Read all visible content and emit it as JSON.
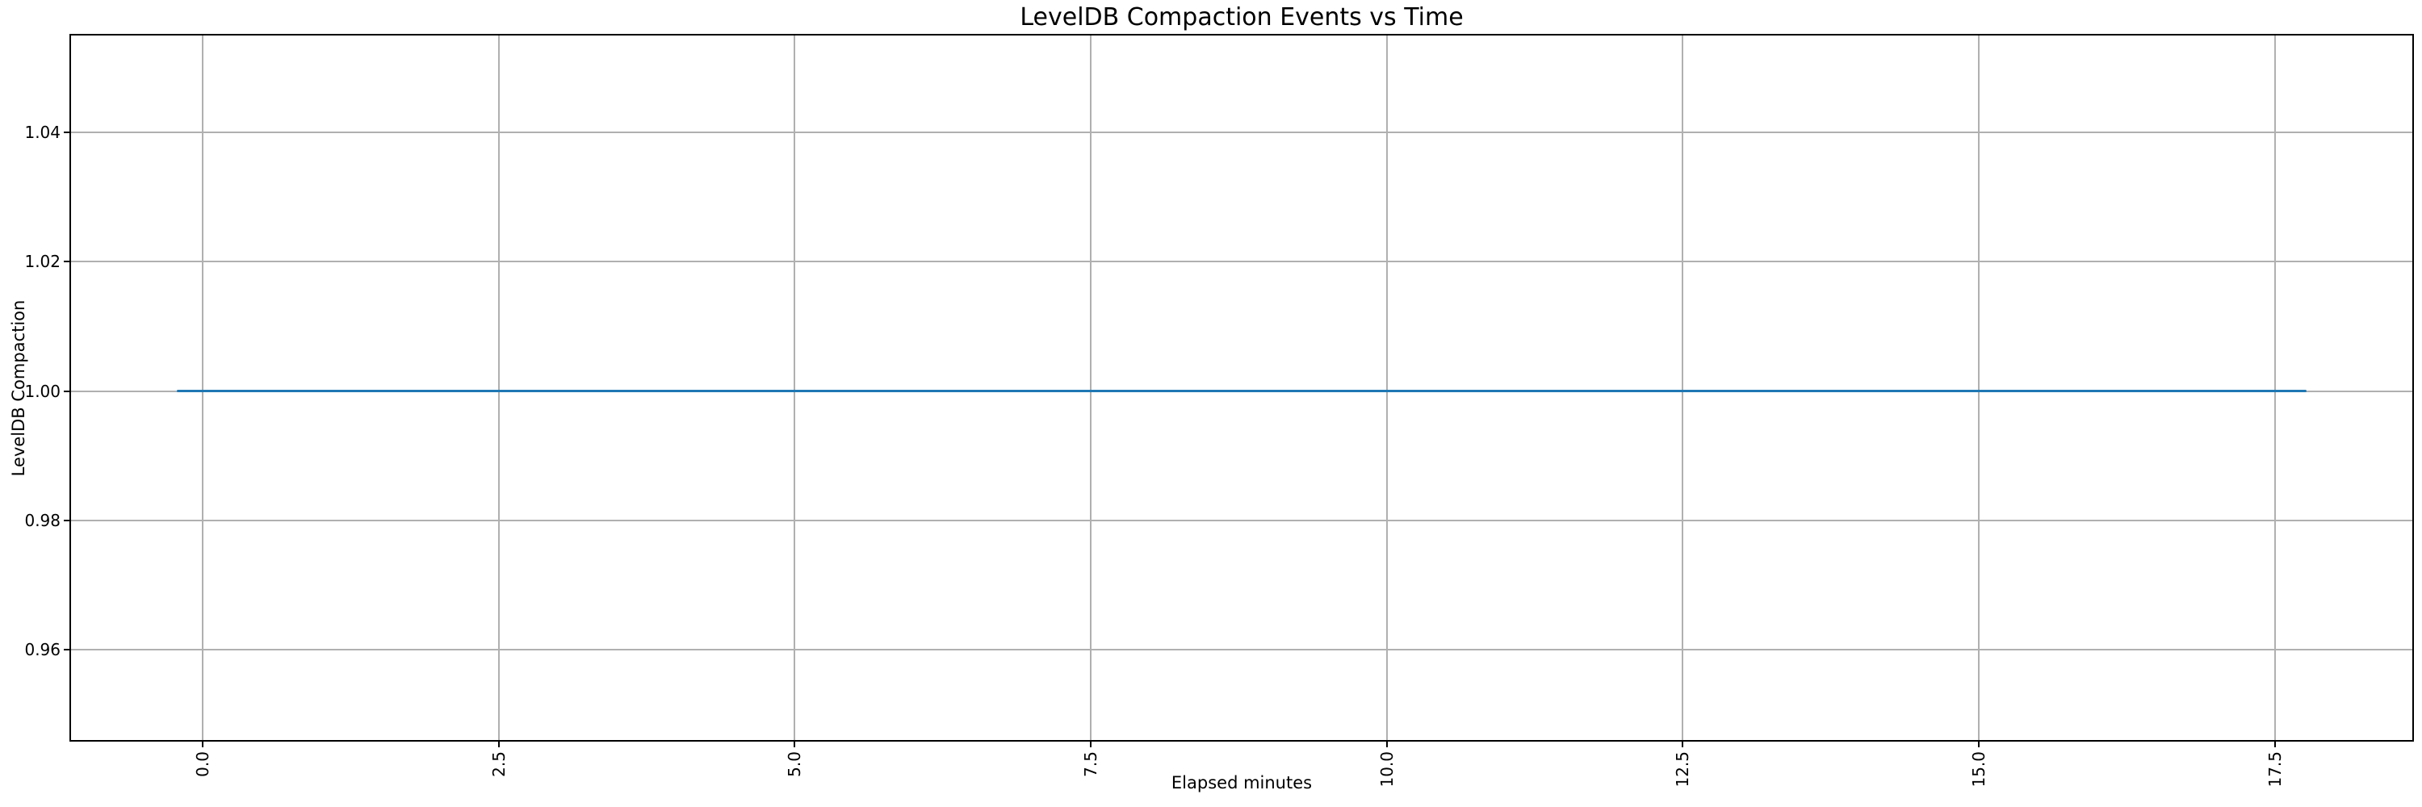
{
  "chart_data": {
    "type": "line",
    "title": "LevelDB Compaction Events vs Time",
    "xlabel": "Elapsed minutes",
    "ylabel": "LevelDB Compaction",
    "xlim": [
      -1.11,
      18.66
    ],
    "ylim": [
      0.946,
      1.055
    ],
    "grid": true,
    "x_ticks": {
      "values": [
        0,
        2.5,
        5,
        7.5,
        10,
        12.5,
        15,
        17.5
      ],
      "labels": [
        "0.0",
        "2.5",
        "5.0",
        "7.5",
        "10.0",
        "12.5",
        "15.0",
        "17.5"
      ],
      "rotation_deg": 90
    },
    "y_ticks": {
      "values": [
        0.96,
        0.98,
        1.0,
        1.02,
        1.04
      ],
      "labels": [
        "0.96",
        "0.98",
        "1.00",
        "1.02",
        "1.04"
      ]
    },
    "series": [
      {
        "name": "LevelDB Compaction",
        "color": "#1f77b4",
        "x": [
          -0.22,
          17.77
        ],
        "y": [
          1.0,
          1.0
        ],
        "description": "flat horizontal line at y = 1.00 spanning the full time range"
      }
    ],
    "colors": {
      "grid": "#b0b0b0",
      "spine": "#000000",
      "text": "#000000",
      "background": "#ffffff"
    }
  }
}
